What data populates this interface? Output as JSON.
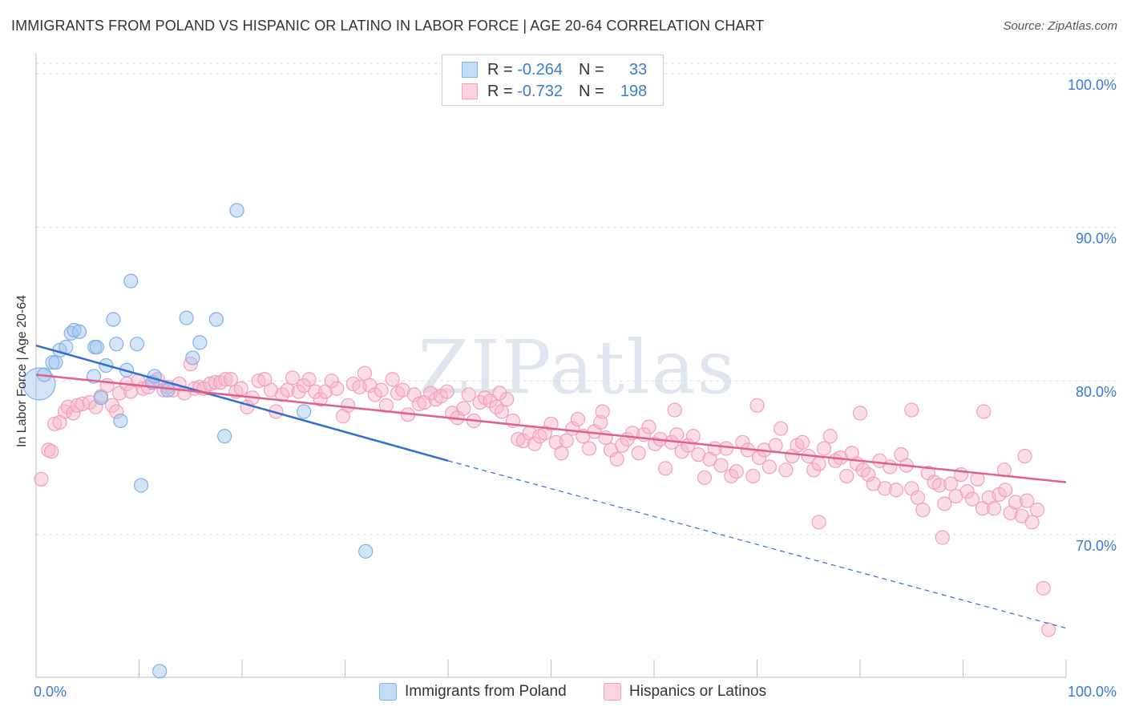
{
  "title": "IMMIGRANTS FROM POLAND VS HISPANIC OR LATINO IN LABOR FORCE | AGE 20-64 CORRELATION CHART",
  "source": "Source: ZipAtlas.com",
  "watermark": "ZIPatlas",
  "legend": {
    "row1": {
      "r_label": "R = ",
      "r_value": "-0.264",
      "n_label": "N = ",
      "n_value": "33"
    },
    "row2": {
      "r_label": "R = ",
      "r_value": "-0.732",
      "n_label": "N = ",
      "n_value": "198"
    }
  },
  "bottom_legend": [
    "Immigrants from Poland",
    "Hispanics or Latinos"
  ],
  "colors": {
    "poland": "#7fb0e8",
    "poland_line": "#2f6fd1",
    "hispanic": "#f2a0ba",
    "hispanic_line": "#e0608c",
    "accent": "#3a7bd5"
  },
  "chart_data": {
    "type": "scatter",
    "xlabel": "",
    "ylabel": "In Labor Force | Age 20-64",
    "xlim": [
      0,
      100
    ],
    "ylim": [
      60.7,
      101.3
    ],
    "x_tick_labels": [
      "0.0%",
      "100.0%"
    ],
    "y_ticks": [
      70,
      80,
      90,
      100
    ],
    "y_tick_labels": [
      "70.0%",
      "80.0%",
      "90.0%",
      "100.0%"
    ],
    "grid": true,
    "series": [
      {
        "name": "Immigrants from Poland",
        "points": [
          [
            0.3,
            79.8
          ],
          [
            0.8,
            80.4
          ],
          [
            1.6,
            81.2
          ],
          [
            1.9,
            81.2
          ],
          [
            2.3,
            82.0
          ],
          [
            2.9,
            82.2
          ],
          [
            3.4,
            83.1
          ],
          [
            3.7,
            83.3
          ],
          [
            4.2,
            83.2
          ],
          [
            5.6,
            80.3
          ],
          [
            5.7,
            82.2
          ],
          [
            5.9,
            82.2
          ],
          [
            6.3,
            78.9
          ],
          [
            6.8,
            81.0
          ],
          [
            7.5,
            84.0
          ],
          [
            7.8,
            82.4
          ],
          [
            8.2,
            77.4
          ],
          [
            8.8,
            80.7
          ],
          [
            9.2,
            86.5
          ],
          [
            9.8,
            82.4
          ],
          [
            10.2,
            73.2
          ],
          [
            11.3,
            79.9
          ],
          [
            11.5,
            80.3
          ],
          [
            12.0,
            61.1
          ],
          [
            12.8,
            79.4
          ],
          [
            14.6,
            84.1
          ],
          [
            15.2,
            81.5
          ],
          [
            15.9,
            82.5
          ],
          [
            17.5,
            84.0
          ],
          [
            18.3,
            76.4
          ],
          [
            19.5,
            91.1
          ],
          [
            26.0,
            78.0
          ],
          [
            32.0,
            68.9
          ]
        ]
      },
      {
        "name": "Hispanics or Latinos",
        "points": [
          [
            0.5,
            73.6
          ],
          [
            1.2,
            75.5
          ],
          [
            1.5,
            75.4
          ],
          [
            1.8,
            77.2
          ],
          [
            2.3,
            77.3
          ],
          [
            2.8,
            78.0
          ],
          [
            3.1,
            78.3
          ],
          [
            3.6,
            77.9
          ],
          [
            4.0,
            78.4
          ],
          [
            4.5,
            78.5
          ],
          [
            5.2,
            78.6
          ],
          [
            5.8,
            78.3
          ],
          [
            6.3,
            79.0
          ],
          [
            6.9,
            79.7
          ],
          [
            7.4,
            78.4
          ],
          [
            7.8,
            78.0
          ],
          [
            8.1,
            79.2
          ],
          [
            8.8,
            79.8
          ],
          [
            9.2,
            79.3
          ],
          [
            9.9,
            80.0
          ],
          [
            10.4,
            79.5
          ],
          [
            10.9,
            79.6
          ],
          [
            11.3,
            79.9
          ],
          [
            11.8,
            80.1
          ],
          [
            12.4,
            79.4
          ],
          [
            12.8,
            79.6
          ],
          [
            13.3,
            79.4
          ],
          [
            13.9,
            79.8
          ],
          [
            14.4,
            79.2
          ],
          [
            15.0,
            81.1
          ],
          [
            15.4,
            79.5
          ],
          [
            15.9,
            79.6
          ],
          [
            16.3,
            79.5
          ],
          [
            16.9,
            79.8
          ],
          [
            17.4,
            79.9
          ],
          [
            17.9,
            79.9
          ],
          [
            18.4,
            80.1
          ],
          [
            18.9,
            80.1
          ],
          [
            19.4,
            79.3
          ],
          [
            19.9,
            79.5
          ],
          [
            20.5,
            78.3
          ],
          [
            21.0,
            78.9
          ],
          [
            21.6,
            80.0
          ],
          [
            22.2,
            80.1
          ],
          [
            22.8,
            79.4
          ],
          [
            23.3,
            78.0
          ],
          [
            23.9,
            79.1
          ],
          [
            24.4,
            79.4
          ],
          [
            24.9,
            80.2
          ],
          [
            25.5,
            79.3
          ],
          [
            26.0,
            79.7
          ],
          [
            26.5,
            80.1
          ],
          [
            27.1,
            79.3
          ],
          [
            27.6,
            78.8
          ],
          [
            28.1,
            79.3
          ],
          [
            28.7,
            80.0
          ],
          [
            29.2,
            79.5
          ],
          [
            29.8,
            77.7
          ],
          [
            30.3,
            78.4
          ],
          [
            30.8,
            79.8
          ],
          [
            31.4,
            79.6
          ],
          [
            31.9,
            80.5
          ],
          [
            32.4,
            79.7
          ],
          [
            32.9,
            79.1
          ],
          [
            33.5,
            79.4
          ],
          [
            34.0,
            78.4
          ],
          [
            34.6,
            80.1
          ],
          [
            35.1,
            79.2
          ],
          [
            35.6,
            79.4
          ],
          [
            36.1,
            77.8
          ],
          [
            36.7,
            79.1
          ],
          [
            37.2,
            78.5
          ],
          [
            37.7,
            78.6
          ],
          [
            38.3,
            79.2
          ],
          [
            38.8,
            78.8
          ],
          [
            39.3,
            79.0
          ],
          [
            39.9,
            79.3
          ],
          [
            40.4,
            77.9
          ],
          [
            40.9,
            77.6
          ],
          [
            41.5,
            78.2
          ],
          [
            42.0,
            79.1
          ],
          [
            42.5,
            77.4
          ],
          [
            43.1,
            78.6
          ],
          [
            43.6,
            78.9
          ],
          [
            44.1,
            78.7
          ],
          [
            44.7,
            78.3
          ],
          [
            45.2,
            78.0
          ],
          [
            45.7,
            78.8
          ],
          [
            46.3,
            77.4
          ],
          [
            46.8,
            76.2
          ],
          [
            47.3,
            76.1
          ],
          [
            47.9,
            76.6
          ],
          [
            48.4,
            75.9
          ],
          [
            48.9,
            76.4
          ],
          [
            49.4,
            76.6
          ],
          [
            50.0,
            77.2
          ],
          [
            50.5,
            76.0
          ],
          [
            51.0,
            75.3
          ],
          [
            51.5,
            76.1
          ],
          [
            52.1,
            76.9
          ],
          [
            52.6,
            77.5
          ],
          [
            53.1,
            76.4
          ],
          [
            53.7,
            75.6
          ],
          [
            54.2,
            76.7
          ],
          [
            54.8,
            77.3
          ],
          [
            55.3,
            76.3
          ],
          [
            55.8,
            75.5
          ],
          [
            56.4,
            74.9
          ],
          [
            56.9,
            75.8
          ],
          [
            57.4,
            76.2
          ],
          [
            57.9,
            76.6
          ],
          [
            58.5,
            75.3
          ],
          [
            59.0,
            76.5
          ],
          [
            59.5,
            77.0
          ],
          [
            60.1,
            75.9
          ],
          [
            60.6,
            76.2
          ],
          [
            61.1,
            74.3
          ],
          [
            61.7,
            76.0
          ],
          [
            62.2,
            76.5
          ],
          [
            62.7,
            75.4
          ],
          [
            63.3,
            75.8
          ],
          [
            63.8,
            76.4
          ],
          [
            64.3,
            75.2
          ],
          [
            64.9,
            73.7
          ],
          [
            65.4,
            74.9
          ],
          [
            65.9,
            75.6
          ],
          [
            66.5,
            74.5
          ],
          [
            67.0,
            75.6
          ],
          [
            67.5,
            73.8
          ],
          [
            68.0,
            74.1
          ],
          [
            68.6,
            76.0
          ],
          [
            69.1,
            75.5
          ],
          [
            69.6,
            73.8
          ],
          [
            70.2,
            75.0
          ],
          [
            70.7,
            75.5
          ],
          [
            71.2,
            74.4
          ],
          [
            71.8,
            75.8
          ],
          [
            72.3,
            76.9
          ],
          [
            72.8,
            74.2
          ],
          [
            73.4,
            75.1
          ],
          [
            73.9,
            75.8
          ],
          [
            74.4,
            76.0
          ],
          [
            75.0,
            75.1
          ],
          [
            75.5,
            74.2
          ],
          [
            76.0,
            74.6
          ],
          [
            76.5,
            75.6
          ],
          [
            77.1,
            76.4
          ],
          [
            77.6,
            74.8
          ],
          [
            78.1,
            75.0
          ],
          [
            78.7,
            73.8
          ],
          [
            79.2,
            75.3
          ],
          [
            79.7,
            74.6
          ],
          [
            80.3,
            74.2
          ],
          [
            80.8,
            73.9
          ],
          [
            81.3,
            73.3
          ],
          [
            81.9,
            74.8
          ],
          [
            82.4,
            73.0
          ],
          [
            82.9,
            74.4
          ],
          [
            83.5,
            72.9
          ],
          [
            84.0,
            75.2
          ],
          [
            84.5,
            74.5
          ],
          [
            85.0,
            73.0
          ],
          [
            85.6,
            72.4
          ],
          [
            86.1,
            71.6
          ],
          [
            86.6,
            74.0
          ],
          [
            87.2,
            73.4
          ],
          [
            87.7,
            73.2
          ],
          [
            88.2,
            72.0
          ],
          [
            88.8,
            73.3
          ],
          [
            89.3,
            72.5
          ],
          [
            89.8,
            73.9
          ],
          [
            90.4,
            72.8
          ],
          [
            90.9,
            72.3
          ],
          [
            91.4,
            73.6
          ],
          [
            91.9,
            71.7
          ],
          [
            92.5,
            72.4
          ],
          [
            93.0,
            71.7
          ],
          [
            93.5,
            72.6
          ],
          [
            94.1,
            72.9
          ],
          [
            94.6,
            71.4
          ],
          [
            95.1,
            72.1
          ],
          [
            95.7,
            71.2
          ],
          [
            96.2,
            72.2
          ],
          [
            96.7,
            70.8
          ],
          [
            97.2,
            71.6
          ],
          [
            97.8,
            66.5
          ],
          [
            98.3,
            63.8
          ],
          [
            45.0,
            79.2
          ],
          [
            55.0,
            78.0
          ],
          [
            62.0,
            78.1
          ],
          [
            70.0,
            78.4
          ],
          [
            80.0,
            77.9
          ],
          [
            85.0,
            78.1
          ],
          [
            92.0,
            78.0
          ],
          [
            96.0,
            75.1
          ],
          [
            94.0,
            74.2
          ],
          [
            88.0,
            69.8
          ],
          [
            76.0,
            70.8
          ]
        ]
      }
    ],
    "trendlines": [
      {
        "name": "Immigrants from Poland",
        "from": [
          0,
          82.3
        ],
        "to": [
          40,
          74.8
        ],
        "dashed_to": [
          100,
          63.9
        ]
      },
      {
        "name": "Hispanics or Latinos",
        "from": [
          0,
          80.4
        ],
        "to": [
          100,
          73.4
        ]
      }
    ]
  }
}
